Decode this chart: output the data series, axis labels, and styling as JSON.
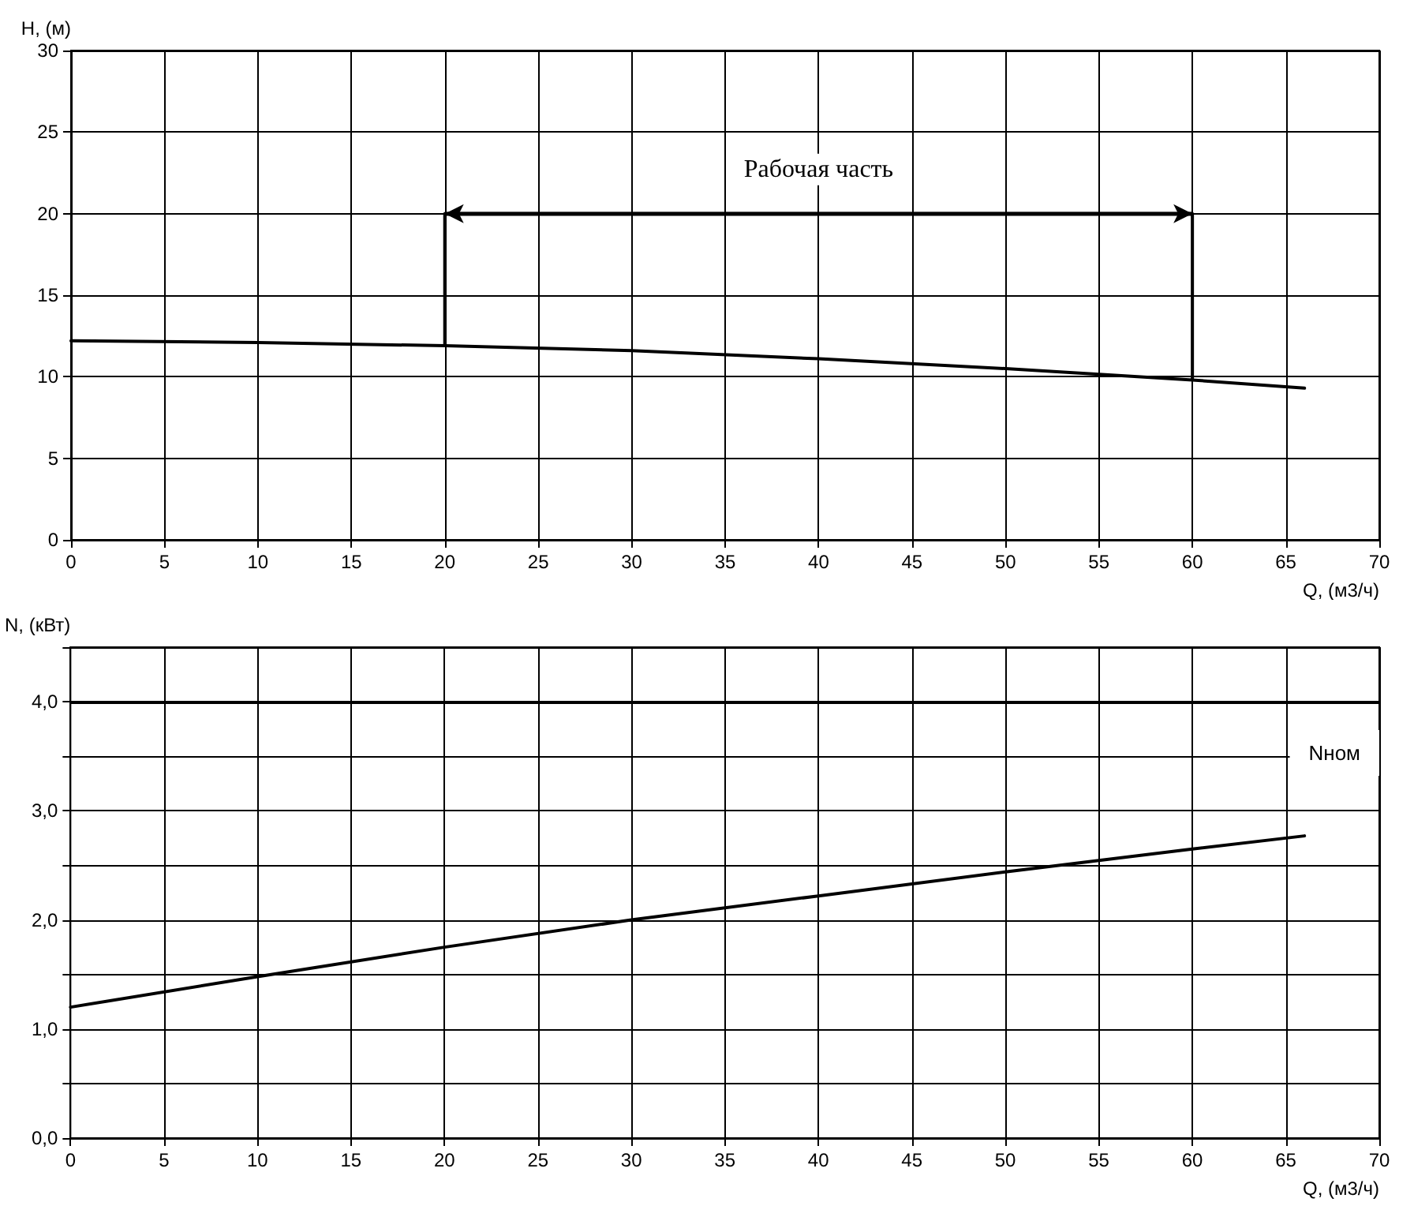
{
  "chart_data": [
    {
      "type": "line",
      "xlabel": "Q, (м3/ч)",
      "ylabel": "H, (м)",
      "series": [
        {
          "color": "#000000",
          "x": [
            0,
            10,
            20,
            30,
            40,
            50,
            60,
            66
          ],
          "values": [
            12.2,
            12.1,
            11.9,
            11.6,
            11.1,
            10.5,
            9.8,
            9.3
          ]
        },
        {
          "color": "#000000",
          "x": [
            20,
            20,
            60,
            60
          ],
          "values": [
            11.9,
            20,
            20,
            9.8
          ]
        }
      ],
      "annotations": [
        {
          "text": "Рабочая часть",
          "x": 40,
          "y": 20
        }
      ],
      "xlim": [
        0,
        70
      ],
      "xticks": [
        0,
        5,
        10,
        15,
        20,
        25,
        30,
        35,
        40,
        45,
        50,
        55,
        60,
        65,
        70
      ],
      "ylim": [
        0,
        30
      ],
      "yticks": [
        0,
        5,
        10,
        15,
        20,
        25,
        30
      ],
      "grid": true,
      "marker": "none",
      "line_style": "solid"
    },
    {
      "type": "line",
      "xlabel": "Q, (м3/ч)",
      "ylabel": "N, (кВт)",
      "series": [
        {
          "color": "#000000",
          "x": [
            0,
            10,
            20,
            30,
            40,
            50,
            60,
            66
          ],
          "values": [
            1.2,
            1.48,
            1.75,
            2.0,
            2.22,
            2.44,
            2.65,
            2.77
          ]
        }
      ],
      "ref_lines": [
        {
          "axis": "y",
          "value": 4.0,
          "label": "Nном",
          "color": "#000000"
        }
      ],
      "xlim": [
        0,
        70
      ],
      "xticks": [
        0,
        5,
        10,
        15,
        20,
        25,
        30,
        35,
        40,
        45,
        50,
        55,
        60,
        65,
        70
      ],
      "ylim": [
        0,
        4.5
      ],
      "yticks": [
        {
          "value": 0,
          "label": "0,0"
        },
        {
          "value": 0.5,
          "label": null
        },
        {
          "value": 1,
          "label": "1,0"
        },
        {
          "value": 1.5,
          "label": null
        },
        {
          "value": 2,
          "label": "2,0"
        },
        {
          "value": 2.5,
          "label": null
        },
        {
          "value": 3,
          "label": "3,0"
        },
        {
          "value": 3.5,
          "label": null
        },
        {
          "value": 4,
          "label": "4,0"
        },
        {
          "value": 4.5,
          "label": null
        }
      ],
      "grid": true,
      "marker": "none",
      "line_style": "solid"
    }
  ]
}
